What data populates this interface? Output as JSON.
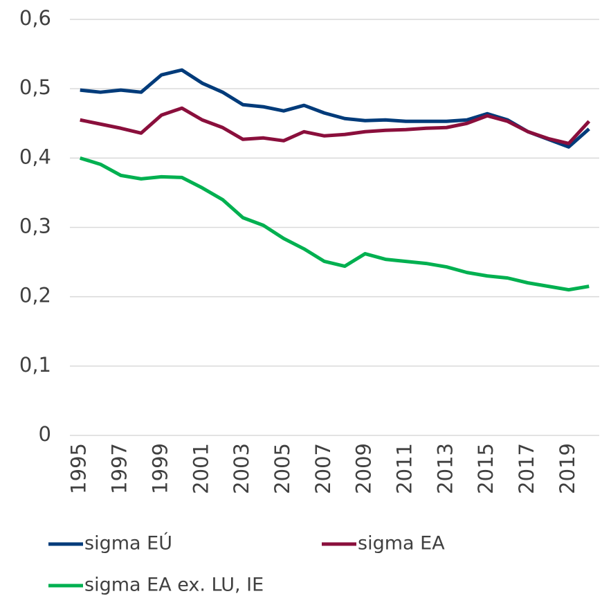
{
  "chart_data": {
    "type": "line",
    "categories": [
      "1995",
      null,
      "1997",
      null,
      "1999",
      null,
      "2001",
      null,
      "2003",
      null,
      "2005",
      null,
      "2007",
      null,
      "2009",
      null,
      "2011",
      null,
      "2013",
      null,
      "2015",
      null,
      "2017",
      null,
      "2019",
      null
    ],
    "series": [
      {
        "name": "sigma EÚ",
        "color": "#003b7a",
        "values": [
          0.498,
          0.495,
          0.498,
          0.495,
          0.52,
          0.527,
          0.508,
          0.495,
          0.477,
          0.474,
          0.468,
          0.476,
          0.465,
          0.457,
          0.454,
          0.455,
          0.453,
          0.453,
          0.453,
          0.455,
          0.464,
          0.455,
          0.438,
          0.427,
          0.416,
          0.442
        ]
      },
      {
        "name": "sigma EA",
        "color": "#8a0f3c",
        "values": [
          0.455,
          0.449,
          0.443,
          0.436,
          0.462,
          0.472,
          0.455,
          0.444,
          0.427,
          0.429,
          0.425,
          0.438,
          0.432,
          0.434,
          0.438,
          0.44,
          0.441,
          0.443,
          0.444,
          0.45,
          0.461,
          0.453,
          0.438,
          0.428,
          0.421,
          0.453
        ]
      },
      {
        "name": "sigma EA ex. LU, IE",
        "color": "#00b050",
        "values": [
          0.4,
          0.391,
          0.375,
          0.37,
          0.373,
          0.372,
          0.357,
          0.34,
          0.314,
          0.303,
          0.284,
          0.269,
          0.251,
          0.244,
          0.262,
          0.254,
          0.251,
          0.248,
          0.243,
          0.235,
          0.23,
          0.227,
          0.22,
          0.215,
          0.21,
          0.215
        ]
      }
    ],
    "ylim": [
      0,
      0.6
    ],
    "yticks": [
      0,
      {
        "value": 0.1,
        "label": "0,1"
      },
      {
        "value": 0.2,
        "label": "0,2"
      },
      {
        "value": 0.3,
        "label": "0,3"
      },
      {
        "value": 0.4,
        "label": "0,4"
      },
      {
        "value": 0.5,
        "label": "0,5"
      },
      {
        "value": 0.6,
        "label": "0,6"
      }
    ],
    "grid": true,
    "legend": "bottom"
  }
}
